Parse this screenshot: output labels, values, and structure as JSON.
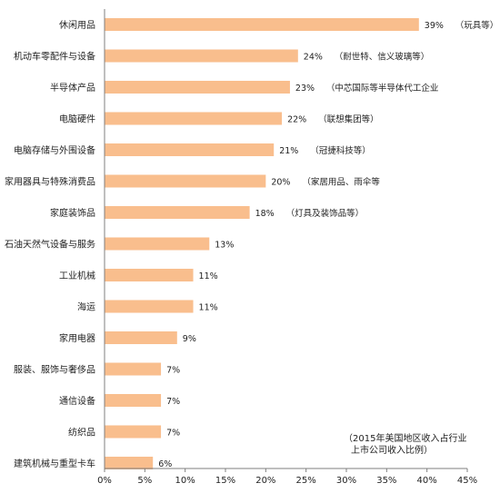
{
  "chart_data": {
    "type": "bar",
    "orientation": "horizontal",
    "categories": [
      "休闲用品",
      "机动车零配件与设备",
      "半导体产品",
      "电脑硬件",
      "电脑存储与外围设备",
      "家用器具与特殊消费品",
      "家庭装饰品",
      "石油天然气设备与服务",
      "工业机械",
      "海运",
      "家用电器",
      "服装、服饰与奢侈品",
      "通信设备",
      "纺织品",
      "建筑机械与重型卡车"
    ],
    "values": [
      39,
      24,
      23,
      22,
      21,
      20,
      18,
      13,
      11,
      11,
      9,
      7,
      7,
      7,
      6
    ],
    "value_labels": [
      "39%",
      "24%",
      "23%",
      "22%",
      "21%",
      "20%",
      "18%",
      "13%",
      "11%",
      "11%",
      "9%",
      "7%",
      "7%",
      "7%",
      "6%"
    ],
    "annotations": [
      "（玩具等）",
      "（耐世特、信义玻璃等）",
      "（中芯国际等半导体代工企业",
      "（联想集团等）",
      "（冠捷科技等）",
      "（家居用品、雨伞等",
      "（灯具及装饰品等）",
      "",
      "",
      "",
      "",
      "",
      "",
      "",
      ""
    ],
    "x_ticks": [
      "0%",
      "5%",
      "10%",
      "15%",
      "20%",
      "25%",
      "30%",
      "35%",
      "40%",
      "45%"
    ],
    "xlim": [
      0,
      45
    ],
    "bar_color": "#F9BE8D",
    "grid": false,
    "footnote_lines": [
      "（2015年美国地区收入占行业",
      "上市公司收入比例）"
    ]
  }
}
